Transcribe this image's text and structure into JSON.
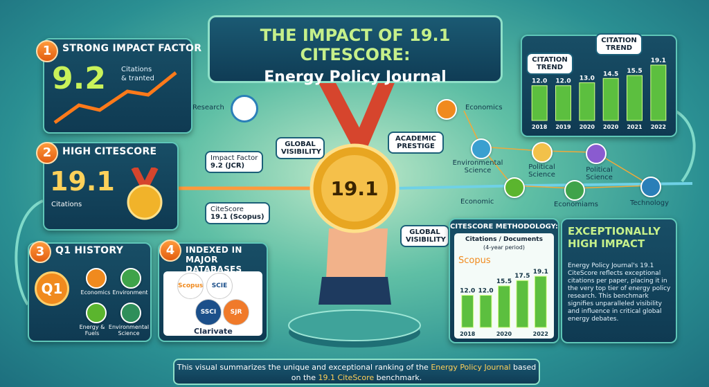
{
  "title": {
    "line1": "THE IMPACT OF 19.1 CITESCORE:",
    "line2": "Energy Policy Journal"
  },
  "impact_factor": {
    "badge": "1",
    "heading": "STRONG IMPACT FACTOR",
    "value": "9.2",
    "note_1": "Citations",
    "note_2": "& tranted"
  },
  "citescore": {
    "badge": "2",
    "heading": "HIGH CITESCORE",
    "value": "19.1",
    "note": "Citations"
  },
  "q1_history": {
    "badge": "3",
    "heading": "Q1 HISTORY",
    "ribbon": "Q1",
    "subjects": [
      "Economics",
      "Environment",
      "Energy & Fuels",
      "Environmental Science"
    ]
  },
  "databases": {
    "badge": "4",
    "heading": "INDEXED IN MAJOR DATABASES",
    "logos": [
      "Scopus",
      "SCIE",
      "SSCI",
      "SJR"
    ],
    "footer_logo": "Clarivate"
  },
  "center": {
    "medal": "19.1",
    "research": "Research",
    "visibility_top": "GLOBAL VISIBILITY",
    "prestige": "ACADEMIC PRESTIGE",
    "visibility_bottom": "GLOBAL VISIBILITY",
    "impact_factor": {
      "name": "Impact Factor",
      "value": "9.2 (JCR)"
    },
    "citescore": {
      "name": "CiteScore",
      "value": "19.1 (Scopus)"
    }
  },
  "network": {
    "nodes": [
      "Economics",
      "Environmental Science",
      "Political Science",
      "Political Science",
      "Economic",
      "Economiams",
      "Technology"
    ]
  },
  "citation_trend": {
    "type": "bar",
    "titles": [
      "CITATION TREND",
      "CITATION TREND"
    ],
    "categories": [
      "2018",
      "2019",
      "2020",
      "2020",
      "2021",
      "2022"
    ],
    "values": [
      12,
      12,
      13,
      14.5,
      15.5,
      19.1
    ],
    "value_labels": [
      "12.0",
      "12.0",
      "13.0",
      "14.5",
      "15.5",
      "19.1"
    ],
    "color": "#5cbf3f"
  },
  "methodology": {
    "type": "bar",
    "title": "CITESCORE METHODOLOGY:",
    "subtitle": "Citations / Documents",
    "period": "(4-year period)",
    "source": "Scopus",
    "categories": [
      "2018",
      null,
      "2020",
      null,
      "2022"
    ],
    "values": [
      12,
      12,
      15.5,
      17.5,
      19.1
    ],
    "value_labels": [
      "12.0",
      "12.0",
      "15.5",
      "17.5",
      "19.1"
    ],
    "color": "#5cbf3f"
  },
  "summary": {
    "heading": "EXCEPTIONALLY HIGH IMPACT",
    "body": "Energy Policy Journal's 19.1 CiteScore reflects exceptional citations per paper, placing it in the very top tier of energy policy research. This benchmark signifies unparalleled visibility and influence in critical global energy debates."
  },
  "footer": {
    "parts": [
      "This visual summarizes the unique and exceptional ranking of the ",
      "Energy Policy Journal",
      " based on the ",
      "19.1 CiteScore",
      " benchmark."
    ]
  }
}
